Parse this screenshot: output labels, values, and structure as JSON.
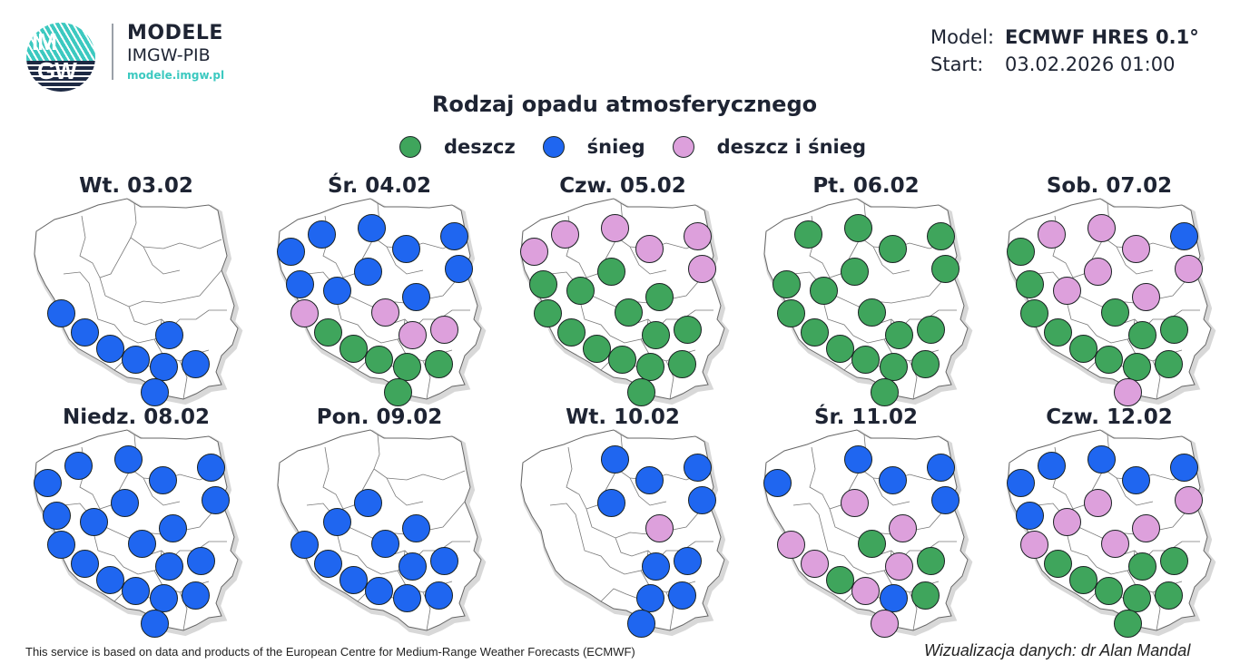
{
  "header": {
    "logo_text_top": "IM",
    "logo_text_bottom": "GW",
    "brand_title": "MODELE",
    "brand_subtitle": "IMGW-PIB",
    "brand_url": "modele.imgw.pl",
    "model_label": "Model:",
    "model_value": "ECMWF HRES 0.1°",
    "start_label": "Start:",
    "start_value": "03.02.2026 01:00"
  },
  "title": "Rodzaj opadu atmosferycznego",
  "legend": [
    {
      "key": "G",
      "label": "deszcz",
      "color": "#3fa55c"
    },
    {
      "key": "B",
      "label": "śnieg",
      "color": "#1f66f0"
    },
    {
      "key": "P",
      "label": "deszcz i śnieg",
      "color": "#dda0dc"
    }
  ],
  "colors": {
    "G": "#3fa55c",
    "B": "#1f66f0",
    "P": "#dda0dc"
  },
  "stations": [
    [
      22,
      85
    ],
    [
      56,
      66
    ],
    [
      111,
      59
    ],
    [
      149,
      82
    ],
    [
      202,
      68
    ],
    [
      32,
      121
    ],
    [
      107,
      107
    ],
    [
      207,
      104
    ],
    [
      73,
      128
    ],
    [
      160,
      135
    ],
    [
      37,
      153
    ],
    [
      126,
      152
    ],
    [
      63,
      174
    ],
    [
      156,
      177
    ],
    [
      191,
      171
    ],
    [
      91,
      192
    ],
    [
      119,
      204
    ],
    [
      150,
      212
    ],
    [
      185,
      209
    ],
    [
      140,
      240
    ]
  ],
  "days": [
    {
      "label": "Wt. 03.02",
      "types": [
        null,
        null,
        null,
        null,
        null,
        null,
        null,
        null,
        null,
        null,
        "B",
        null,
        "B",
        "B",
        null,
        "B",
        "B",
        "B",
        "B",
        "B"
      ]
    },
    {
      "label": "Śr. 04.02",
      "types": [
        "B",
        "B",
        "B",
        "B",
        "B",
        "B",
        "B",
        "B",
        "B",
        "B",
        "P",
        "P",
        "G",
        "P",
        "P",
        "G",
        "G",
        "G",
        "G",
        "G"
      ]
    },
    {
      "label": "Czw. 05.02",
      "types": [
        "P",
        "P",
        "P",
        "P",
        "P",
        "G",
        "G",
        "P",
        "G",
        "G",
        "G",
        "G",
        "G",
        "G",
        "G",
        "G",
        "G",
        "G",
        "G",
        "G"
      ]
    },
    {
      "label": "Pt. 06.02",
      "types": [
        null,
        "G",
        "G",
        "G",
        "G",
        "G",
        "G",
        "G",
        "G",
        null,
        "G",
        "G",
        "G",
        "G",
        "G",
        "G",
        "G",
        "G",
        "G",
        "G"
      ]
    },
    {
      "label": "Sob. 07.02",
      "types": [
        "G",
        "P",
        "P",
        "P",
        "B",
        "G",
        "P",
        "P",
        "P",
        "P",
        "G",
        "G",
        "G",
        "G",
        "G",
        "G",
        "G",
        "G",
        "G",
        "P"
      ]
    },
    {
      "label": "Niedz. 08.02",
      "types": [
        "B",
        "B",
        "B",
        "B",
        "B",
        "B",
        "B",
        "B",
        "B",
        "B",
        "B",
        "B",
        "B",
        "B",
        "B",
        "B",
        "B",
        "B",
        "B",
        "B"
      ]
    },
    {
      "label": "Pon. 09.02",
      "types": [
        null,
        null,
        null,
        null,
        null,
        null,
        "B",
        null,
        "B",
        "B",
        "B",
        "B",
        "B",
        "B",
        "B",
        "B",
        "B",
        "B",
        "B",
        null
      ]
    },
    {
      "label": "Wt. 10.02",
      "types": [
        null,
        null,
        "B",
        "B",
        "B",
        null,
        "B",
        "B",
        null,
        "P",
        null,
        null,
        null,
        "B",
        "B",
        null,
        null,
        "B",
        "B",
        "B"
      ]
    },
    {
      "label": "Śr. 11.02",
      "types": [
        "B",
        null,
        "B",
        "B",
        "B",
        null,
        "P",
        "B",
        null,
        "P",
        "P",
        "G",
        "P",
        "P",
        "G",
        "G",
        "P",
        "B",
        "G",
        "P"
      ]
    },
    {
      "label": "Czw. 12.02",
      "types": [
        "B",
        "B",
        "B",
        "B",
        "B",
        "B",
        "P",
        "P",
        "P",
        "P",
        "P",
        "P",
        "G",
        "G",
        "G",
        "G",
        "G",
        "G",
        "G",
        "G"
      ]
    }
  ],
  "footer": {
    "attribution": "This service is based on data and products of the European Centre for Medium-Range Weather Forecasts (ECMWF)",
    "credit": "Wizualizacja danych: dr Alan Mandal"
  }
}
